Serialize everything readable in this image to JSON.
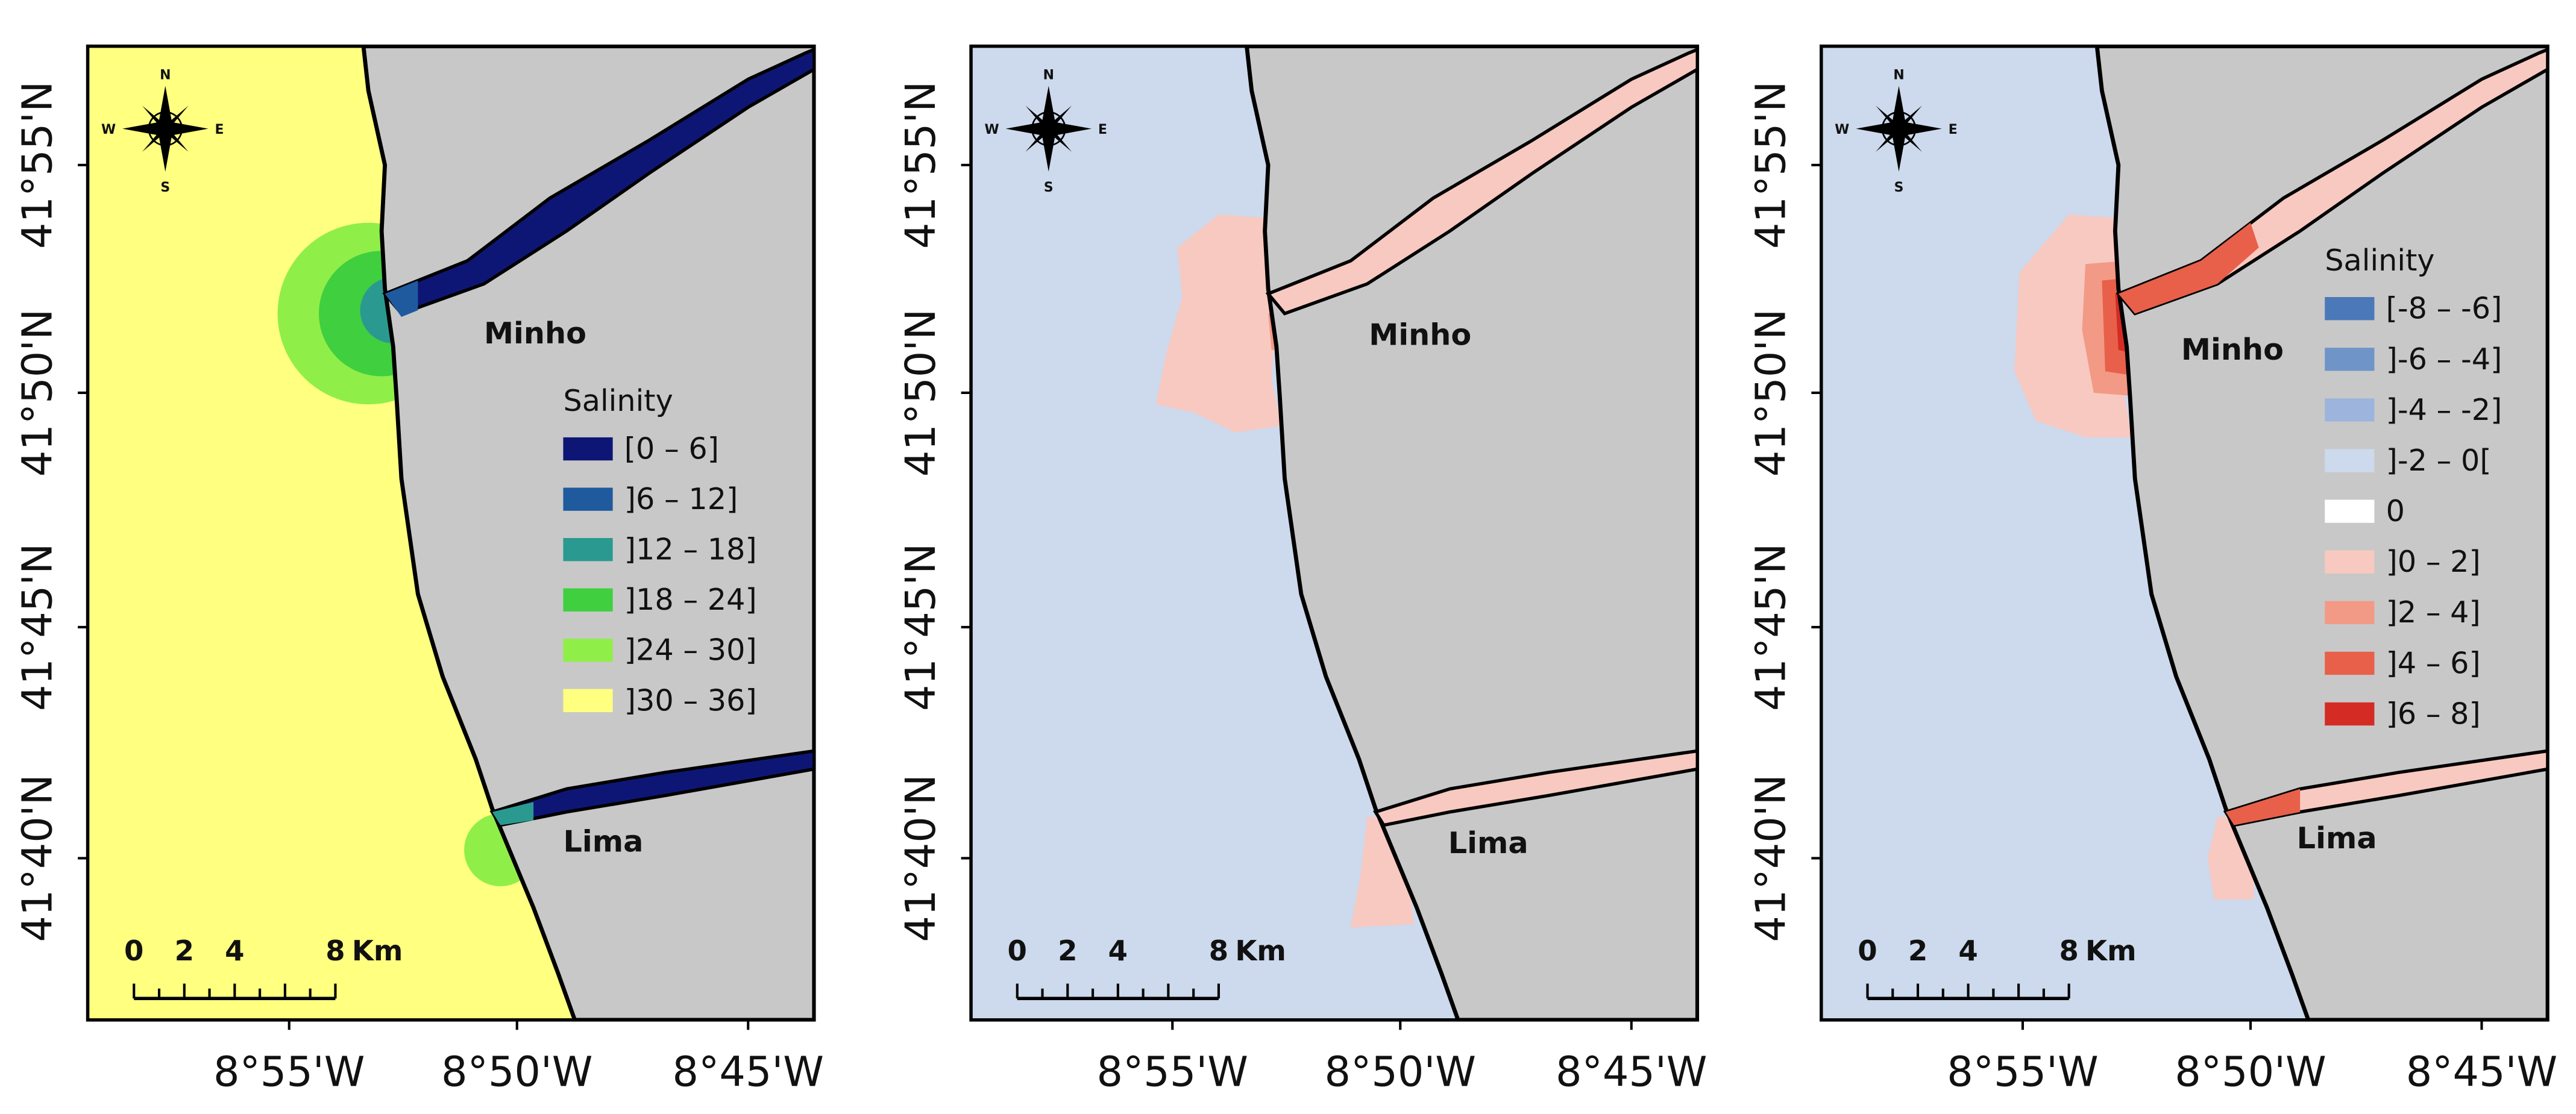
{
  "axes": {
    "lat_labels": [
      "41°55'N",
      "41°50'N",
      "41°45'N",
      "41°40'N"
    ],
    "lon_labels": [
      "8°55'W",
      "8°50'W",
      "8°45'W"
    ]
  },
  "places": {
    "minho": "Minho",
    "lima": "Lima"
  },
  "scale_bar": {
    "labels": [
      "0",
      "2",
      "4",
      "8"
    ],
    "unit": "Km"
  },
  "compass": {
    "n": "N",
    "s": "S",
    "e": "E",
    "w": "W"
  },
  "panels": [
    {
      "legend": {
        "title": "Salinity",
        "items": [
          {
            "label": "[0 – 6]",
            "color": "#0e1675"
          },
          {
            "label": "]6 – 12]",
            "color": "#1f5a9e"
          },
          {
            "label": "]12 – 18]",
            "color": "#2a9a90"
          },
          {
            "label": "]18 – 24]",
            "color": "#3fcf3f"
          },
          {
            "label": "]24 – 30]",
            "color": "#90ee48"
          },
          {
            "label": "]30 – 36]",
            "color": "#ffff80"
          }
        ]
      }
    },
    {},
    {
      "legend": {
        "title": "Salinity",
        "items": [
          {
            "label": "[-8 – -6]",
            "color": "#4a78b8"
          },
          {
            "label": "]-6 – -4]",
            "color": "#6e94c8"
          },
          {
            "label": "]-4 – -2]",
            "color": "#9db5dc"
          },
          {
            "label": "]-2 – 0[",
            "color": "#cdd9ec"
          },
          {
            "label": "0",
            "color": "#ffffff"
          },
          {
            "label": "]0 – 2]",
            "color": "#f8c9c0"
          },
          {
            "label": "]2 – 4]",
            "color": "#f29a85"
          },
          {
            "label": "]4 – 6]",
            "color": "#e8604a"
          },
          {
            "label": "]6 – 8]",
            "color": "#d42b25"
          }
        ]
      }
    }
  ]
}
